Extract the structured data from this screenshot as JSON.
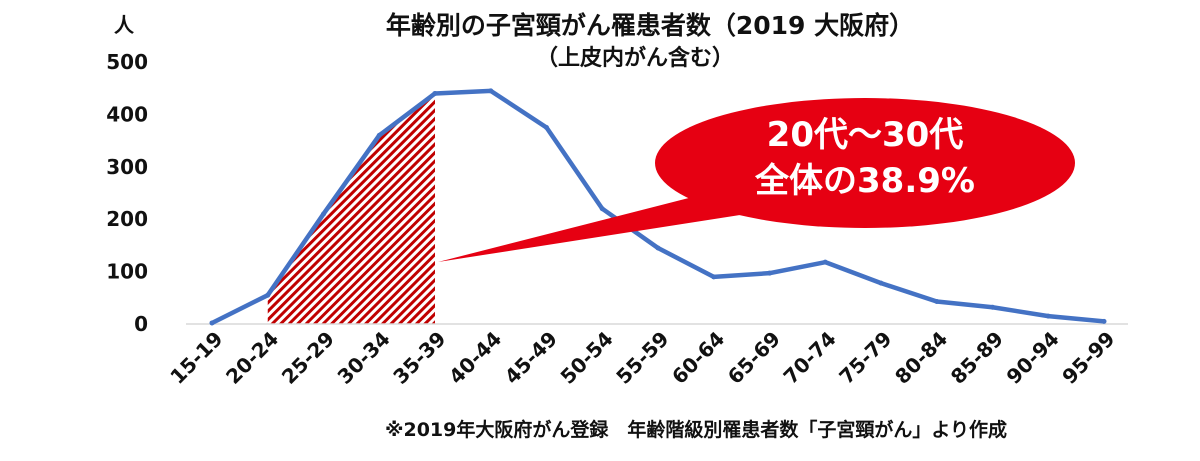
{
  "chart_data": {
    "type": "line",
    "title": "年齢別の子宮頸がん罹患者数（2019 大阪府）",
    "subtitle": "（上皮内がん含む）",
    "ylabel": "人",
    "xlabel": "",
    "ylim": [
      0,
      500
    ],
    "yticks": [
      "0",
      "100",
      "200",
      "300",
      "400",
      "500"
    ],
    "categories": [
      "15-19",
      "20-24",
      "25-29",
      "30-34",
      "35-39",
      "40-44",
      "45-49",
      "50-54",
      "55-59",
      "60-64",
      "65-69",
      "70-74",
      "75-79",
      "80-84",
      "85-89",
      "90-94",
      "95-99"
    ],
    "series": [
      {
        "values": [
          2,
          55,
          210,
          360,
          440,
          445,
          375,
          220,
          145,
          90,
          97,
          118,
          78,
          43,
          32,
          15,
          5
        ],
        "color": "#4472C4"
      }
    ],
    "highlight": {
      "from": "20-24",
      "to": "35-39",
      "color": "#C00000"
    },
    "grid": false,
    "callout": {
      "line1": "20代～30代",
      "line2": "全体の38.9%",
      "color": "#E60012"
    },
    "note": "※2019年大阪府がん登録　年齢階級別罹患者数「子宮頸がん」より作成"
  }
}
